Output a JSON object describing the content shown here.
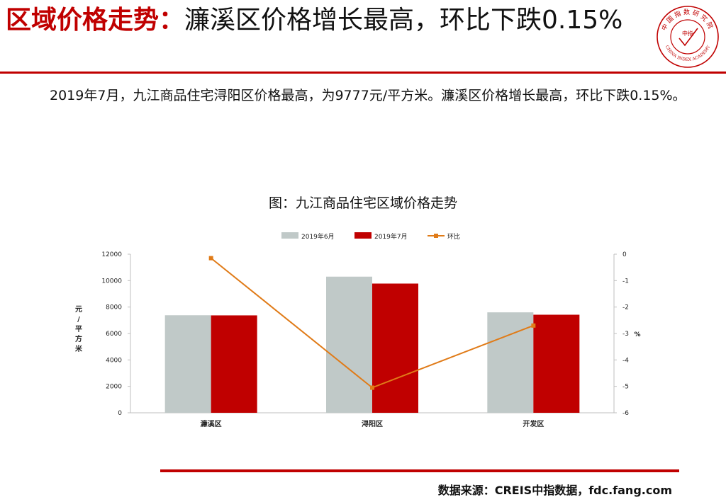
{
  "header": {
    "title_keyword": "区域价格走势：",
    "title_rest": "濂溪区价格增长最高，环比下跌0.15%",
    "logo_text": "中国指数研究院",
    "logo_text_en": "CHINA INDEX ACADEMY",
    "logo_center": "中指"
  },
  "intro": "2019年7月，九江商品住宅浔阳区价格最高，为9777元/平方米。濂溪区价格增长最高，环比下跌0.15%。",
  "figure_title": "图：九江商品住宅区域价格走势",
  "chart_data": {
    "type": "bar",
    "categories": [
      "濂溪区",
      "浔阳区",
      "开发区"
    ],
    "series": [
      {
        "name": "2019年6月",
        "type": "bar",
        "axis": "left",
        "color": "#c0c9c8",
        "values": [
          7380,
          10300,
          7600
        ]
      },
      {
        "name": "2019年7月",
        "type": "bar",
        "axis": "left",
        "color": "#c00000",
        "values": [
          7370,
          9777,
          7420
        ]
      },
      {
        "name": "环比",
        "type": "line",
        "axis": "right",
        "color": "#e07b18",
        "values": [
          -0.15,
          -5.05,
          -2.7
        ]
      }
    ],
    "ylabel": "元/平方米",
    "ylim": [
      0,
      12000
    ],
    "yticks": [
      "0",
      "2000",
      "4000",
      "6000",
      "8000",
      "10000",
      "12000"
    ],
    "y2label": "%",
    "y2lim": [
      -6,
      0
    ],
    "y2ticks": [
      "0",
      "-1",
      "-2",
      "-3",
      "-4",
      "-5",
      "-6"
    ],
    "legend": "top",
    "grid": false
  },
  "footer": {
    "source": "数据来源：CREIS中指数据，fdc.fang.com"
  }
}
